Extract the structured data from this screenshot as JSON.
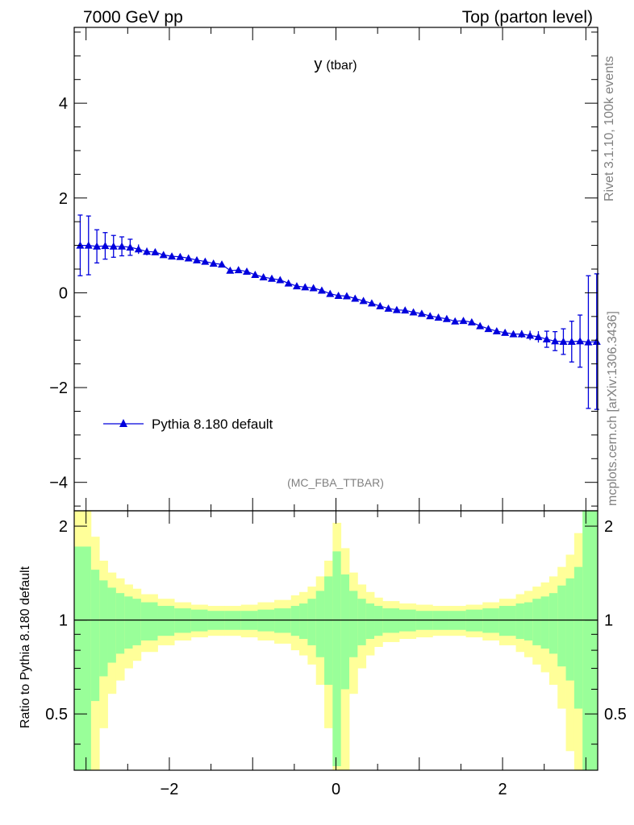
{
  "header": {
    "left": "7000 GeV pp",
    "right": "Top (parton level)"
  },
  "side": {
    "rivet": "Rivet 3.1.10,  100k events",
    "mcplots": "mcplots.cern.ch [arXiv:1306.3436]"
  },
  "chart_data": {
    "type": "scatter",
    "title": "y",
    "title_sub": "(tbar)",
    "analysis": "(MC_FBA_TTBAR)",
    "legend": "Pythia 8.180 default",
    "colors": {
      "series": "#0000dd",
      "band_inner": "#99ff99",
      "band_outer": "#ffff99",
      "line": "#000000"
    },
    "xlim": [
      -3.142,
      3.142
    ],
    "ylim": [
      -4.6,
      5.6
    ],
    "yticks": [
      -4,
      -2,
      0,
      2,
      4
    ],
    "yticklabels": [
      "−4",
      "−2",
      "0",
      "2",
      "4"
    ],
    "xticks": [
      -2,
      0,
      2
    ],
    "xticklabels": [
      "−2",
      "0",
      "2"
    ],
    "x": [
      -3.07,
      -2.97,
      -2.87,
      -2.77,
      -2.67,
      -2.57,
      -2.47,
      -2.37,
      -2.27,
      -2.17,
      -2.07,
      -1.97,
      -1.87,
      -1.77,
      -1.67,
      -1.57,
      -1.47,
      -1.37,
      -1.27,
      -1.17,
      -1.07,
      -0.97,
      -0.87,
      -0.77,
      -0.67,
      -0.57,
      -0.47,
      -0.37,
      -0.27,
      -0.17,
      -0.07,
      0.03,
      0.13,
      0.23,
      0.33,
      0.43,
      0.53,
      0.63,
      0.73,
      0.83,
      0.93,
      1.03,
      1.13,
      1.23,
      1.33,
      1.43,
      1.53,
      1.63,
      1.73,
      1.83,
      1.93,
      2.03,
      2.13,
      2.23,
      2.33,
      2.43,
      2.53,
      2.63,
      2.73,
      2.83,
      2.93,
      3.03,
      3.13
    ],
    "y": [
      1.0,
      1.0,
      0.98,
      0.99,
      0.98,
      0.98,
      0.96,
      0.92,
      0.87,
      0.86,
      0.8,
      0.77,
      0.76,
      0.73,
      0.69,
      0.66,
      0.62,
      0.6,
      0.47,
      0.48,
      0.45,
      0.38,
      0.33,
      0.3,
      0.27,
      0.2,
      0.14,
      0.12,
      0.1,
      0.05,
      -0.02,
      -0.06,
      -0.07,
      -0.12,
      -0.17,
      -0.22,
      -0.28,
      -0.33,
      -0.36,
      -0.37,
      -0.41,
      -0.44,
      -0.49,
      -0.52,
      -0.55,
      -0.6,
      -0.59,
      -0.62,
      -0.7,
      -0.76,
      -0.81,
      -0.84,
      -0.87,
      -0.87,
      -0.9,
      -0.93,
      -0.98,
      -1.02,
      -1.03,
      -1.03,
      -1.02,
      -1.04,
      -1.03
    ],
    "yerr": [
      0.64,
      0.62,
      0.35,
      0.28,
      0.23,
      0.2,
      0.17,
      0.1,
      0.08,
      0.06,
      0.05,
      0.04,
      0.04,
      0.04,
      0.04,
      0.04,
      0.04,
      0.04,
      0.04,
      0.04,
      0.04,
      0.04,
      0.04,
      0.04,
      0.04,
      0.04,
      0.04,
      0.04,
      0.04,
      0.04,
      0.04,
      0.04,
      0.04,
      0.04,
      0.04,
      0.04,
      0.04,
      0.04,
      0.04,
      0.04,
      0.04,
      0.04,
      0.04,
      0.04,
      0.04,
      0.04,
      0.04,
      0.04,
      0.04,
      0.04,
      0.04,
      0.06,
      0.06,
      0.08,
      0.1,
      0.12,
      0.17,
      0.2,
      0.27,
      0.43,
      0.55,
      1.4,
      1.43
    ],
    "ratio": {
      "ylabel": "Ratio to Pythia 8.180 default",
      "ylim": [
        0.33,
        2.24
      ],
      "yticks": [
        0.5,
        1,
        2
      ],
      "yticklabels": [
        "0.5",
        "1",
        "2"
      ],
      "bins": [
        -3.14,
        -2.94,
        -2.84,
        -2.74,
        -2.64,
        -2.54,
        -2.44,
        -2.34,
        -2.14,
        -1.94,
        -1.74,
        -1.54,
        -1.34,
        -1.14,
        -0.94,
        -0.74,
        -0.54,
        -0.44,
        -0.34,
        -0.24,
        -0.14,
        -0.04,
        0.06,
        0.16,
        0.26,
        0.36,
        0.46,
        0.56,
        0.76,
        0.96,
        1.16,
        1.36,
        1.56,
        1.76,
        1.96,
        2.16,
        2.26,
        2.36,
        2.46,
        2.56,
        2.66,
        2.76,
        2.86,
        2.96,
        3.14
      ],
      "inner": [
        0.72,
        0.45,
        0.34,
        0.27,
        0.22,
        0.19,
        0.17,
        0.14,
        0.11,
        0.09,
        0.08,
        0.07,
        0.07,
        0.07,
        0.08,
        0.09,
        0.11,
        0.13,
        0.17,
        0.24,
        0.38,
        0.66,
        0.4,
        0.24,
        0.17,
        0.13,
        0.11,
        0.09,
        0.08,
        0.07,
        0.07,
        0.07,
        0.08,
        0.09,
        0.11,
        0.13,
        0.14,
        0.17,
        0.19,
        0.22,
        0.29,
        0.36,
        0.48,
        1.4
      ],
      "outer": [
        1.6,
        0.85,
        0.55,
        0.42,
        0.36,
        0.3,
        0.26,
        0.21,
        0.17,
        0.14,
        0.12,
        0.11,
        0.11,
        0.12,
        0.14,
        0.16,
        0.2,
        0.23,
        0.28,
        0.38,
        0.55,
        1.05,
        0.7,
        0.42,
        0.3,
        0.23,
        0.18,
        0.15,
        0.13,
        0.12,
        0.11,
        0.11,
        0.12,
        0.14,
        0.17,
        0.21,
        0.24,
        0.28,
        0.32,
        0.38,
        0.48,
        0.62,
        0.9,
        1.6
      ]
    }
  }
}
